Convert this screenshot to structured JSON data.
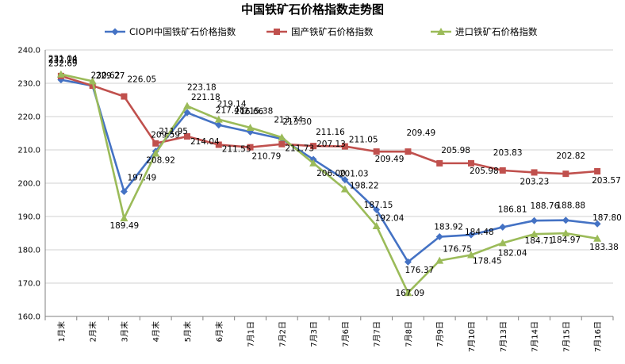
{
  "chart_data": {
    "type": "line",
    "title": "中国铁矿石价格指数走势图",
    "categories": [
      "1月末",
      "2月末",
      "3月末",
      "4月末",
      "5月末",
      "6月末",
      "7月1日",
      "7月2日",
      "7月3日",
      "7月6日",
      "7月7日",
      "7月8日",
      "7月9日",
      "7月10日",
      "7月13日",
      "7月14日",
      "7月15日",
      "7月16日"
    ],
    "ylim": [
      160,
      240
    ],
    "yticks": [
      "160.0",
      "170.0",
      "180.0",
      "190.0",
      "200.0",
      "210.0",
      "220.0",
      "230.0",
      "240.0"
    ],
    "grid": true,
    "legend_position": "top",
    "series": [
      {
        "name": "CIOPI中国铁矿石价格指数",
        "color": "#4472C4",
        "marker": "diamond",
        "values": [
          231.04,
          229.27,
          197.49,
          209.59,
          221.18,
          217.48,
          215.38,
          213.3,
          207.13,
          201.03,
          192.04,
          176.37,
          183.92,
          184.48,
          186.81,
          188.76,
          188.88,
          187.8
        ],
        "labels": [
          "231.04",
          "229.27",
          "197.49",
          "209.59",
          "221.18",
          "217.48",
          "215.38",
          "213.30",
          "207.13",
          "201.03",
          "192.04",
          "176.37",
          "183.92",
          "184.48",
          "186.81",
          "188.76",
          "188.88",
          "187.80"
        ]
      },
      {
        "name": "国产铁矿石价格指数",
        "color": "#C0504D",
        "marker": "square",
        "values": [
          232.18,
          229.27,
          226.05,
          211.95,
          214.04,
          211.55,
          210.79,
          211.73,
          211.16,
          211.05,
          209.49,
          209.49,
          205.98,
          205.98,
          203.83,
          203.23,
          202.82,
          203.57
        ],
        "labels": [
          "232.18",
          "",
          "226.05",
          "211.95",
          "214.04",
          "211.55",
          "210.79",
          "211.73",
          "211.16",
          "211.05",
          "209.49",
          "209.49",
          "205.98",
          "205.98",
          "203.83",
          "203.23",
          "202.82",
          "203.57"
        ]
      },
      {
        "name": "进口铁矿石价格指数",
        "color": "#9BBB59",
        "marker": "triangle",
        "values": [
          232.69,
          230.62,
          189.49,
          208.92,
          223.18,
          219.14,
          216.66,
          213.74,
          206.0,
          198.22,
          187.15,
          167.09,
          176.75,
          178.45,
          182.04,
          184.71,
          184.97,
          183.38
        ],
        "labels": [
          "232.69",
          "230.62",
          "189.49",
          "208.92",
          "223.18",
          "219.14",
          "216.66",
          "213.74",
          "206.00",
          "198.22",
          "187.15",
          "167.09",
          "176.75",
          "178.45",
          "182.04",
          "184.71",
          "184.97",
          "183.38"
        ]
      }
    ]
  }
}
